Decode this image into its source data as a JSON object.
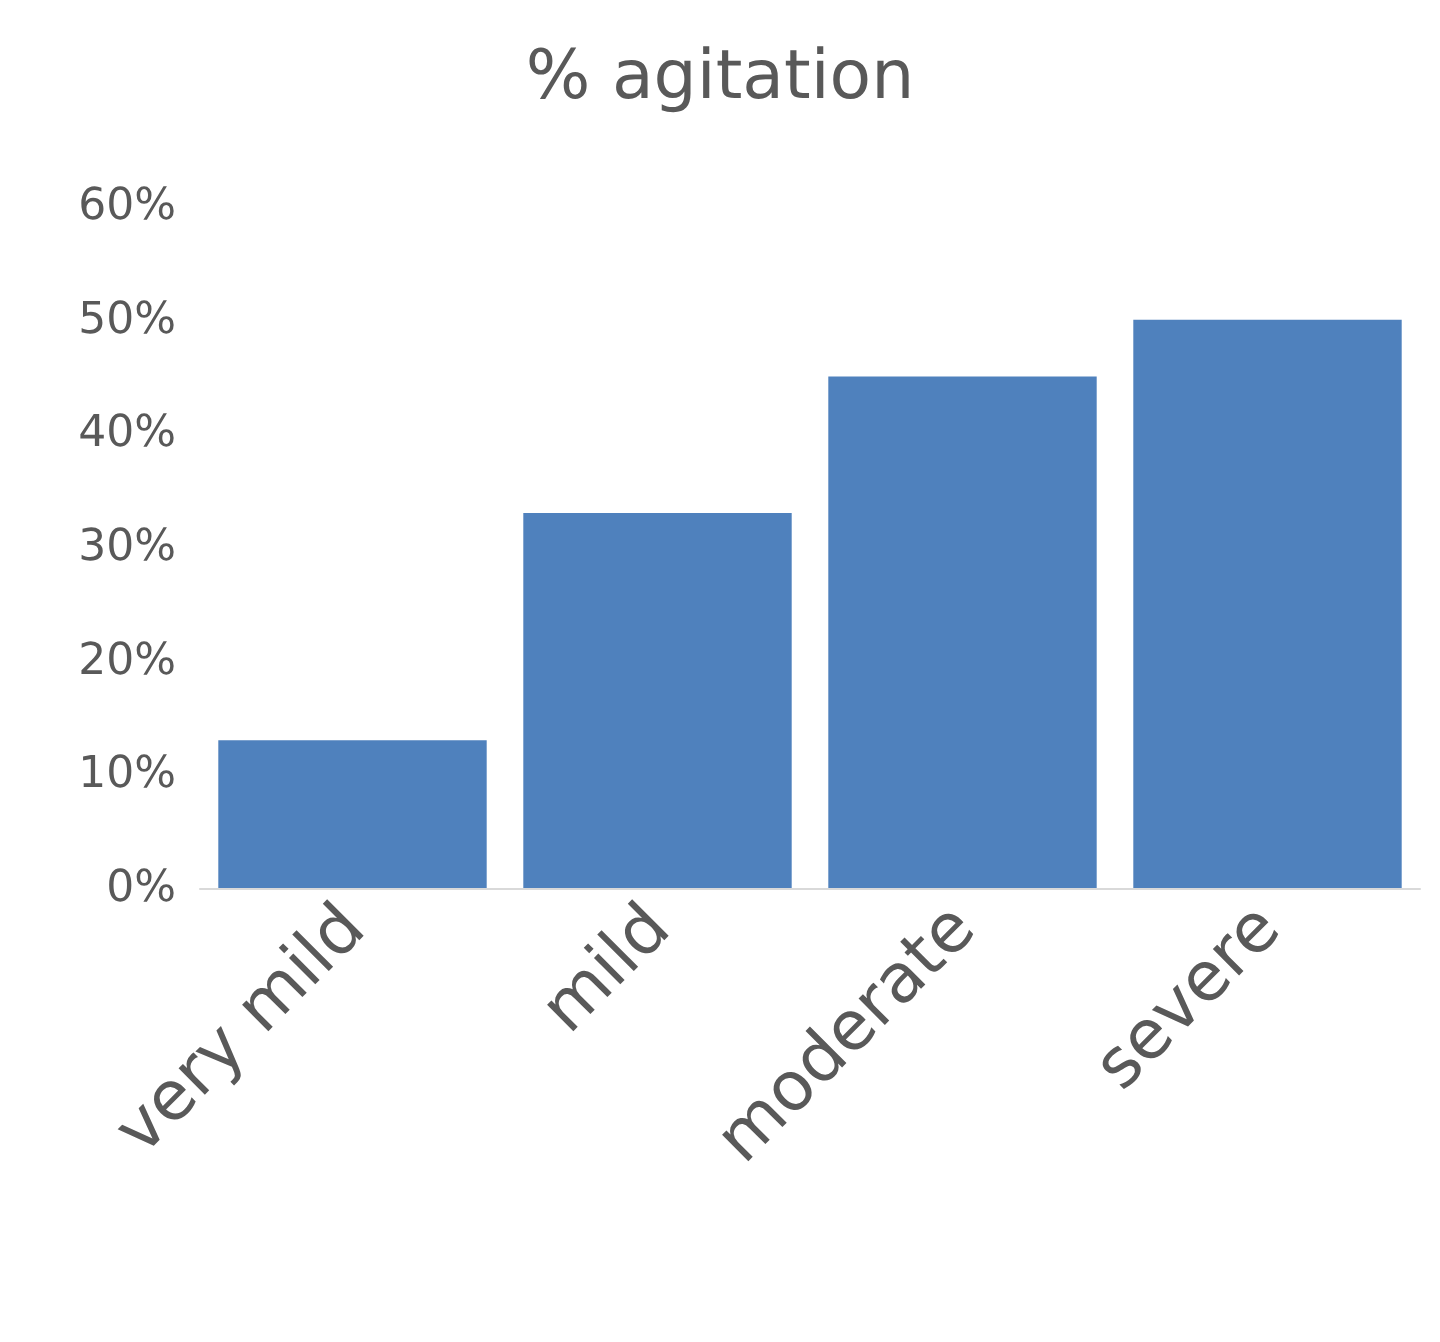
{
  "chart_data": {
    "type": "bar",
    "title": "% agitation",
    "categories": [
      "very mild",
      "mild",
      "moderate",
      "severe"
    ],
    "values": [
      13,
      33,
      45,
      50
    ],
    "color": "#4f81bd",
    "ylim": [
      0,
      60
    ],
    "yticks": [
      {
        "value": 0,
        "label": "0%"
      },
      {
        "value": 10,
        "label": "10%"
      },
      {
        "value": 20,
        "label": "20%"
      },
      {
        "value": 30,
        "label": "30%"
      },
      {
        "value": 40,
        "label": "40%"
      },
      {
        "value": 50,
        "label": "50%"
      },
      {
        "value": 60,
        "label": "60%"
      }
    ],
    "grid": false
  }
}
